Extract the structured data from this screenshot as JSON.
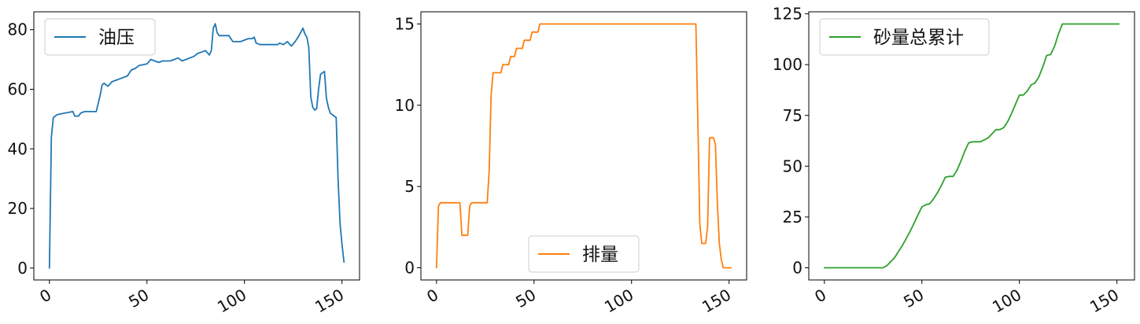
{
  "chart_data": [
    {
      "type": "line",
      "series": [
        {
          "name": "油压",
          "color": "#1f77b4",
          "x": [
            0,
            1,
            2,
            4,
            8,
            12,
            13,
            15,
            16,
            18,
            20,
            24,
            26,
            27,
            28,
            30,
            32,
            34,
            36,
            40,
            42,
            44,
            46,
            50,
            52,
            54,
            56,
            58,
            62,
            64,
            66,
            68,
            70,
            72,
            74,
            76,
            78,
            80,
            82,
            83,
            84,
            85,
            86,
            87,
            88,
            90,
            92,
            94,
            95,
            96,
            98,
            100,
            102,
            104,
            105,
            106,
            108,
            110,
            112,
            114,
            116,
            117,
            118,
            120,
            121,
            122,
            124,
            126,
            128,
            130,
            131,
            132,
            133,
            134,
            135,
            136,
            137,
            138,
            139,
            140,
            141,
            142,
            143,
            144,
            146,
            147,
            148,
            149,
            150,
            151
          ],
          "y": [
            0,
            44,
            50.5,
            51.5,
            52,
            52.5,
            51,
            51,
            52,
            52.5,
            52.5,
            52.5,
            58,
            61.5,
            62,
            61,
            62.5,
            63,
            63.5,
            64.5,
            66.5,
            67,
            68,
            68.5,
            70,
            69.5,
            69,
            69.5,
            69.5,
            70,
            70.5,
            69.5,
            70,
            70.5,
            71,
            72,
            72.5,
            73,
            71.5,
            73,
            80.5,
            82,
            79,
            78,
            78,
            78,
            78,
            76,
            76,
            76,
            76,
            76.5,
            77,
            77,
            77.5,
            75.5,
            75,
            75,
            75,
            75,
            75,
            75,
            75.5,
            75,
            75.5,
            76,
            74.5,
            76,
            78,
            80.5,
            78.5,
            77.5,
            74,
            57.5,
            54,
            53,
            53.5,
            60,
            65,
            65.5,
            66,
            57,
            54,
            52,
            51,
            50.5,
            30,
            15,
            8,
            2
          ]
        }
      ],
      "xlim": [
        -8,
        159
      ],
      "ylim": [
        -4,
        86
      ],
      "xticks": [
        0,
        50,
        100,
        150
      ],
      "yticks": [
        0,
        20,
        40,
        60,
        80
      ],
      "legend": "upper left"
    },
    {
      "type": "line",
      "series": [
        {
          "name": "排量",
          "color": "#ff7f0e",
          "x": [
            0,
            1,
            2,
            8,
            10,
            12,
            13,
            15,
            16,
            17,
            18,
            22,
            24,
            26,
            27,
            28,
            29,
            30,
            32,
            33,
            34,
            36,
            37,
            38,
            40,
            41,
            42,
            44,
            45,
            46,
            48,
            49,
            50,
            52,
            53,
            54,
            55,
            56,
            60,
            70,
            80,
            90,
            100,
            110,
            120,
            130,
            133,
            134,
            135,
            136,
            137,
            138,
            139,
            140,
            141,
            142,
            143,
            144,
            145,
            146,
            147,
            148,
            149,
            150,
            151
          ],
          "y": [
            0,
            3.8,
            4,
            4,
            4,
            4,
            2,
            2,
            2,
            3.8,
            4,
            4,
            4,
            4,
            6,
            10.6,
            12,
            12,
            12,
            12,
            12.5,
            12.5,
            12.5,
            13,
            13,
            13.5,
            13.5,
            13.5,
            14,
            14,
            14,
            14.5,
            14.5,
            14.5,
            15,
            15,
            15,
            15,
            15,
            15,
            15,
            15,
            15,
            15,
            15,
            15,
            15,
            9,
            2.7,
            1.5,
            1.5,
            1.5,
            2.5,
            8,
            8,
            8,
            7.6,
            4,
            1.5,
            0.5,
            0,
            0,
            0,
            0,
            0
          ]
        }
      ],
      "xlim": [
        -8,
        159
      ],
      "ylim": [
        -0.75,
        15.75
      ],
      "xticks": [
        0,
        50,
        100,
        150
      ],
      "yticks": [
        0,
        5,
        10,
        15
      ],
      "legend": "lower center"
    },
    {
      "type": "line",
      "series": [
        {
          "name": "砂量总累计",
          "color": "#2ca02c",
          "x": [
            0,
            10,
            20,
            28,
            30,
            32,
            34,
            36,
            38,
            40,
            42,
            44,
            46,
            48,
            50,
            52,
            54,
            56,
            58,
            60,
            62,
            64,
            66,
            68,
            70,
            72,
            74,
            76,
            78,
            80,
            82,
            84,
            86,
            88,
            90,
            92,
            94,
            96,
            98,
            100,
            102,
            104,
            106,
            108,
            110,
            112,
            114,
            116,
            118,
            120,
            122,
            124,
            126,
            128,
            130,
            140,
            151
          ],
          "y": [
            0,
            0,
            0,
            0,
            0,
            1,
            3,
            5,
            8,
            11,
            14.5,
            18,
            22,
            26,
            30,
            31,
            31.5,
            34,
            37,
            40.5,
            44.5,
            45,
            45,
            48,
            52.5,
            57.5,
            61.5,
            62,
            62,
            62,
            63,
            64,
            66,
            68,
            68,
            69,
            72,
            76,
            80.5,
            85,
            85,
            87,
            90,
            91,
            94,
            99,
            104.5,
            105,
            109,
            115,
            120,
            120,
            120,
            120,
            120,
            120,
            120
          ]
        }
      ],
      "xlim": [
        -8,
        159
      ],
      "ylim": [
        -6,
        126
      ],
      "xticks": [
        0,
        50,
        100,
        150
      ],
      "yticks": [
        0,
        25,
        50,
        75,
        100,
        125
      ],
      "legend": "upper left"
    }
  ]
}
